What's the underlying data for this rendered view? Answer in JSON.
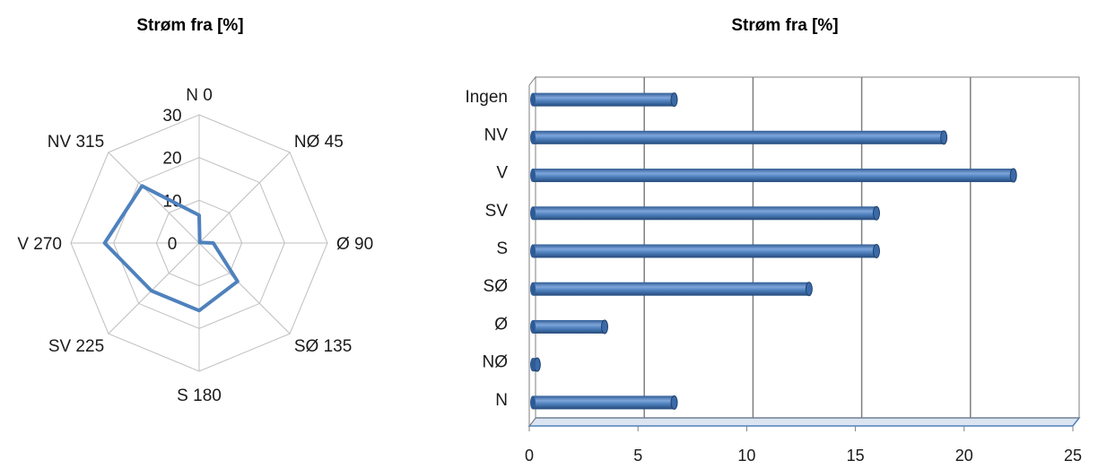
{
  "chart_data": [
    {
      "type": "radar",
      "title": "Strøm fra [%]",
      "categories": [
        "N 0",
        "NØ 45",
        "Ø 90",
        "SØ 135",
        "S 180",
        "SV 225",
        "V 270",
        "NV 315"
      ],
      "radial_ticks": [
        "0",
        "10",
        "20",
        "30"
      ],
      "rlim": [
        0,
        30
      ],
      "series": [
        {
          "values": [
            6.5,
            0.2,
            3.3,
            12.7,
            15.8,
            15.8,
            22.1,
            18.9
          ]
        }
      ],
      "colors": {
        "series": "#4F81BD",
        "grid": "#BFBFBF"
      },
      "legend": "none"
    },
    {
      "type": "bar",
      "orientation": "horizontal",
      "style": "3d-cylinder",
      "title": "Strøm fra [%]",
      "categories": [
        "N",
        "NØ",
        "Ø",
        "SØ",
        "S",
        "SV",
        "V",
        "NV",
        "Ingen"
      ],
      "values": [
        6.5,
        0.2,
        3.3,
        12.7,
        15.8,
        15.8,
        22.1,
        18.9,
        6.5
      ],
      "xlim": [
        0,
        25
      ],
      "xticks": [
        "0",
        "5",
        "10",
        "15",
        "20",
        "25"
      ],
      "grid": "vertical major",
      "colors": {
        "bar": "#4F81BD",
        "gridline": "#7F7F7F",
        "floor": "#4F81BD"
      },
      "legend": "none"
    }
  ]
}
